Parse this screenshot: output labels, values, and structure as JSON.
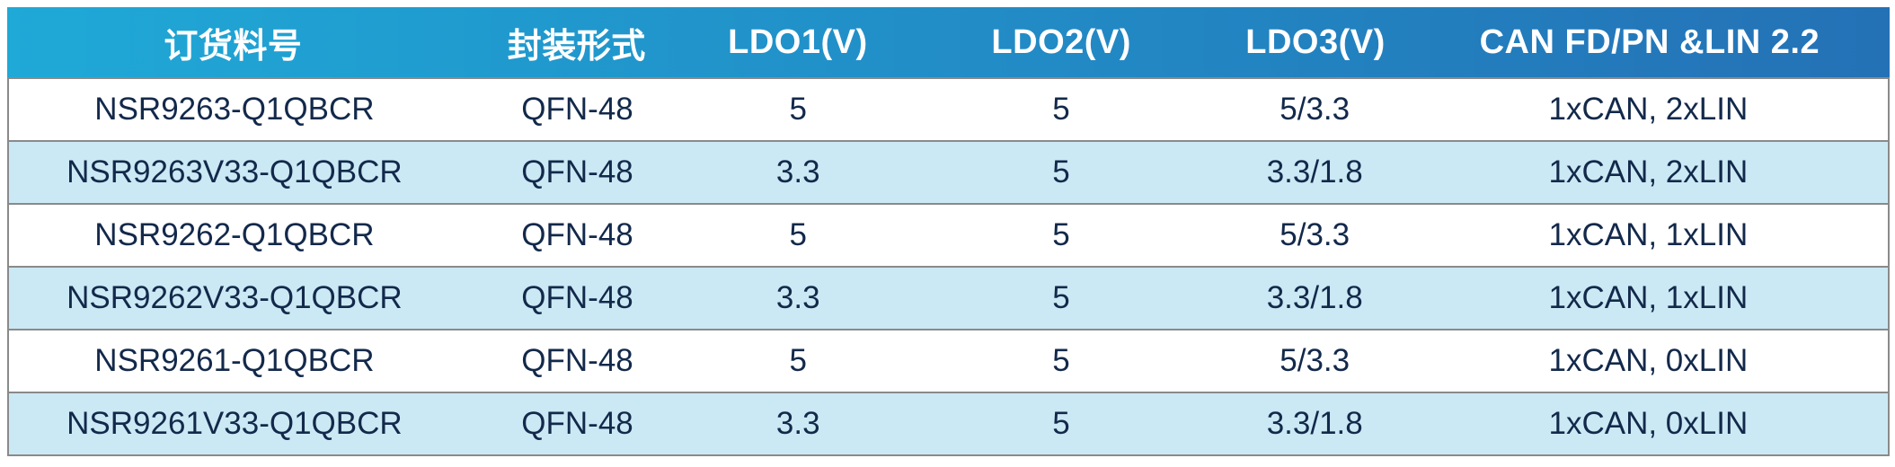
{
  "colors": {
    "header_gradient_left": "#1FA9D7",
    "header_gradient_right": "#2471B6",
    "header_text": "#FFFFFF",
    "row_default": "#FFFFFF",
    "row_alt": "#CBE9F4",
    "body_text": "#13294B",
    "row_border": "#8A8A8A"
  },
  "table": {
    "headers": [
      "订货料号",
      "封装形式",
      "LDO1(V)",
      "LDO2(V)",
      "LDO3(V)",
      "CAN FD/PN &LIN 2.2"
    ],
    "rows": [
      [
        "NSR9263-Q1QBCR",
        "QFN-48",
        "5",
        "5",
        "5/3.3",
        "1xCAN, 2xLIN"
      ],
      [
        "NSR9263V33-Q1QBCR",
        "QFN-48",
        "3.3",
        "5",
        "3.3/1.8",
        "1xCAN, 2xLIN"
      ],
      [
        "NSR9262-Q1QBCR",
        "QFN-48",
        "5",
        "5",
        "5/3.3",
        "1xCAN, 1xLIN"
      ],
      [
        "NSR9262V33-Q1QBCR",
        "QFN-48",
        "3.3",
        "5",
        "3.3/1.8",
        "1xCAN, 1xLIN"
      ],
      [
        "NSR9261-Q1QBCR",
        "QFN-48",
        "5",
        "5",
        "5/3.3",
        "1xCAN, 0xLIN"
      ],
      [
        "NSR9261V33-Q1QBCR",
        "QFN-48",
        "3.3",
        "5",
        "3.3/1.8",
        "1xCAN, 0xLIN"
      ]
    ]
  }
}
